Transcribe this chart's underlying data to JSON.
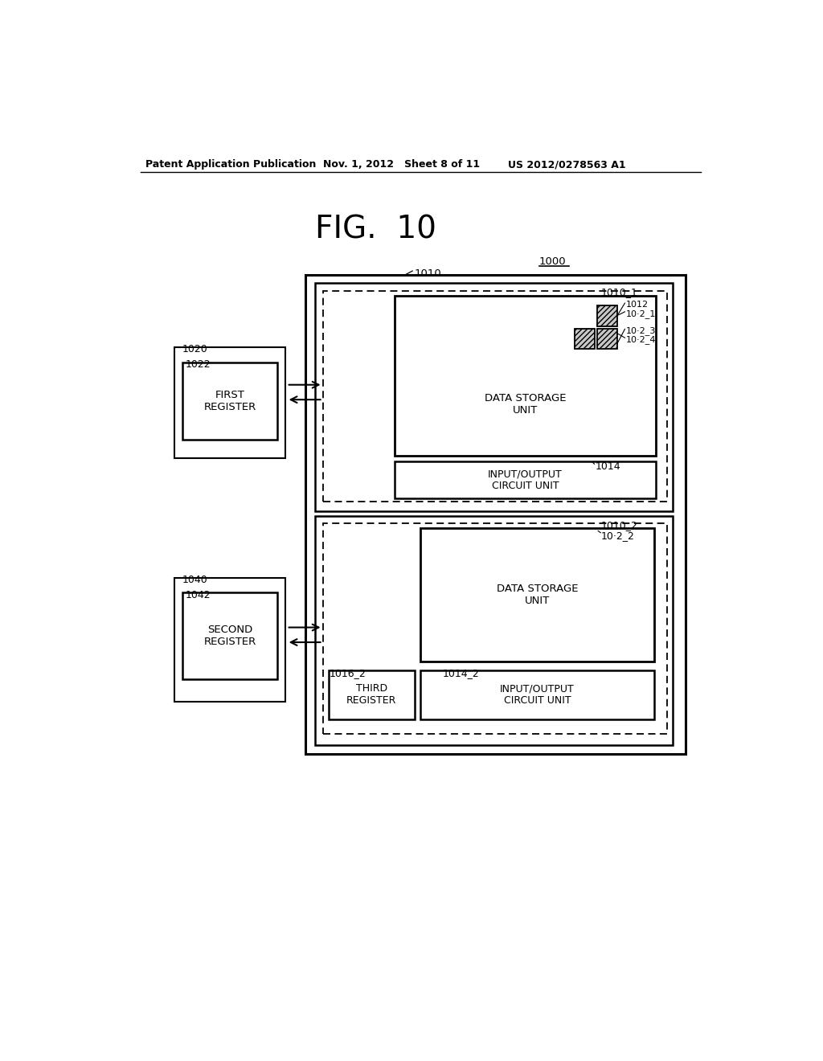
{
  "bg_color": "#ffffff",
  "header_left": "Patent Application Publication",
  "header_mid": "Nov. 1, 2012   Sheet 8 of 11",
  "header_right": "US 2012/0278563 A1",
  "fig_title": "FIG.  10",
  "label_1000": "1000",
  "label_1010": "1010",
  "label_1010_1": "1010_1",
  "label_1010_2": "1010_2",
  "label_1012": "1012",
  "label_1012_1": "10·2_1",
  "label_1012_3": "10·2_3",
  "label_1012_4": "10·2_4",
  "label_1012_2": "10·2_2",
  "label_1014": "1014",
  "label_1014_2": "1014_2",
  "label_1016_2": "1016_2",
  "label_1020": "1020",
  "label_1022": "1022",
  "label_1040": "1040",
  "label_1042": "1042",
  "text_first_register": "FIRST\nREGISTER",
  "text_second_register": "SECOND\nREGISTER",
  "text_third_register": "THIRD\nREGISTER",
  "text_data_storage_1": "DATA STORAGE\nUNIT",
  "text_data_storage_2": "DATA STORAGE\nUNIT",
  "text_io_1": "INPUT/OUTPUT\nCIRCUIT UNIT",
  "text_io_2": "INPUT/OUTPUT\nCIRCUIT UNIT"
}
